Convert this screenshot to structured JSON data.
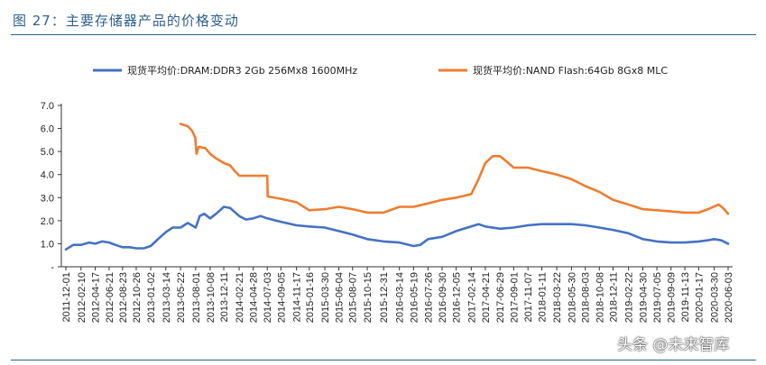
{
  "figure": {
    "title": "图 27：主要存储器产品的价格变动",
    "watermark": "头条 @未来智库"
  },
  "chart_data": {
    "type": "line",
    "title": "",
    "xlabel": "",
    "ylabel": "",
    "ylim": [
      0,
      7
    ],
    "yticks": [
      "-",
      "1.0",
      "2.0",
      "3.0",
      "4.0",
      "5.0",
      "6.0",
      "7.0"
    ],
    "legend_position": "top",
    "x_tick_labels": [
      "2011-12-01",
      "2012-02-10",
      "2012-04-17",
      "2012-06-21",
      "2012-08-23",
      "2012-10-26",
      "2013-01-02",
      "2013-03-14",
      "2013-05-22",
      "2013-08-01",
      "2013-10-08",
      "2013-12-11",
      "2014-02-21",
      "2014-04-28",
      "2014-07-03",
      "2014-09-05",
      "2014-11-17",
      "2015-01-16",
      "2015-03-30",
      "2015-06-04",
      "2015-08-07",
      "2015-10-15",
      "2015-12-31",
      "2016-03-14",
      "2016-05-19",
      "2016-07-26",
      "2016-09-30",
      "2016-12-05",
      "2017-02-14",
      "2017-04-21",
      "2017-06-29",
      "2017-09-01",
      "2017-11-07",
      "2018-01-11",
      "2018-03-22",
      "2018-05-30",
      "2018-08-03",
      "2018-10-08",
      "2018-12-11",
      "2019-02-22",
      "2019-04-30",
      "2019-07-05",
      "2019-09-09",
      "2019-11-13",
      "2020-01-17",
      "2020-03-30",
      "2020-06-03"
    ],
    "series": [
      {
        "name": "现货平均价:DRAM:DDR3 2Gb 256Mx8 1600MHz",
        "color": "#4472c4",
        "x": [
          "2011-12-01",
          "2012-01-05",
          "2012-02-10",
          "2012-03-01",
          "2012-03-20",
          "2012-04-17",
          "2012-05-20",
          "2012-06-21",
          "2012-07-20",
          "2012-08-23",
          "2012-09-25",
          "2012-10-26",
          "2012-12-01",
          "2013-01-02",
          "2013-02-05",
          "2013-03-14",
          "2013-04-15",
          "2013-05-22",
          "2013-06-25",
          "2013-08-01",
          "2013-08-20",
          "2013-09-10",
          "2013-10-08",
          "2013-11-05",
          "2013-12-11",
          "2014-01-10",
          "2014-02-21",
          "2014-03-25",
          "2014-04-28",
          "2014-06-01",
          "2014-07-03",
          "2014-09-05",
          "2014-11-17",
          "2015-01-16",
          "2015-03-30",
          "2015-06-04",
          "2015-08-07",
          "2015-10-15",
          "2015-12-31",
          "2016-03-14",
          "2016-05-19",
          "2016-06-20",
          "2016-07-26",
          "2016-09-30",
          "2016-12-05",
          "2017-02-14",
          "2017-03-20",
          "2017-04-21",
          "2017-06-29",
          "2017-09-01",
          "2017-11-07",
          "2018-01-11",
          "2018-03-22",
          "2018-05-30",
          "2018-08-03",
          "2018-10-08",
          "2018-12-11",
          "2019-02-22",
          "2019-04-30",
          "2019-07-05",
          "2019-09-09",
          "2019-11-13",
          "2020-01-17",
          "2020-03-01",
          "2020-03-30",
          "2020-05-01",
          "2020-06-03"
        ],
        "values": [
          0.75,
          0.95,
          0.95,
          1.0,
          1.05,
          1.0,
          1.1,
          1.05,
          0.95,
          0.85,
          0.85,
          0.8,
          0.8,
          0.9,
          1.2,
          1.5,
          1.7,
          1.7,
          1.9,
          1.7,
          2.2,
          2.3,
          2.1,
          2.3,
          2.6,
          2.55,
          2.2,
          2.05,
          2.1,
          2.2,
          2.1,
          1.95,
          1.8,
          1.75,
          1.7,
          1.55,
          1.4,
          1.2,
          1.1,
          1.05,
          0.9,
          0.95,
          1.2,
          1.3,
          1.55,
          1.75,
          1.85,
          1.75,
          1.65,
          1.7,
          1.8,
          1.85,
          1.85,
          1.85,
          1.8,
          1.7,
          1.6,
          1.45,
          1.2,
          1.1,
          1.05,
          1.05,
          1.1,
          1.15,
          1.2,
          1.15,
          1.0
        ]
      },
      {
        "name": "现货平均价:NAND Flash:64Gb 8Gx8 MLC",
        "color": "#ed7d31",
        "x": [
          "2013-05-22",
          "2013-06-25",
          "2013-07-15",
          "2013-07-30",
          "2013-08-05",
          "2013-08-15",
          "2013-09-15",
          "2013-10-08",
          "2013-11-05",
          "2013-12-11",
          "2014-01-10",
          "2014-02-01",
          "2014-02-21",
          "2014-04-28",
          "2014-07-03",
          "2014-07-05",
          "2014-09-05",
          "2014-11-17",
          "2015-01-16",
          "2015-03-30",
          "2015-06-04",
          "2015-08-07",
          "2015-10-15",
          "2015-12-31",
          "2016-03-14",
          "2016-05-19",
          "2016-07-26",
          "2016-09-30",
          "2016-12-05",
          "2017-02-14",
          "2017-03-20",
          "2017-04-21",
          "2017-05-25",
          "2017-06-29",
          "2017-08-01",
          "2017-09-01",
          "2017-11-07",
          "2018-01-11",
          "2018-03-22",
          "2018-05-30",
          "2018-08-03",
          "2018-10-08",
          "2018-12-11",
          "2019-02-22",
          "2019-04-30",
          "2019-07-05",
          "2019-09-09",
          "2019-11-13",
          "2020-01-17",
          "2020-03-01",
          "2020-04-20",
          "2020-05-10",
          "2020-06-03"
        ],
        "values": [
          6.2,
          6.1,
          5.9,
          5.6,
          4.9,
          5.2,
          5.15,
          4.9,
          4.7,
          4.5,
          4.4,
          4.15,
          3.95,
          3.95,
          3.95,
          3.05,
          2.95,
          2.8,
          2.45,
          2.5,
          2.6,
          2.5,
          2.35,
          2.35,
          2.6,
          2.6,
          2.75,
          2.9,
          3.0,
          3.15,
          3.8,
          4.5,
          4.8,
          4.8,
          4.55,
          4.3,
          4.3,
          4.15,
          4.0,
          3.8,
          3.5,
          3.25,
          2.9,
          2.7,
          2.5,
          2.45,
          2.4,
          2.35,
          2.35,
          2.5,
          2.7,
          2.55,
          2.3
        ]
      }
    ]
  }
}
